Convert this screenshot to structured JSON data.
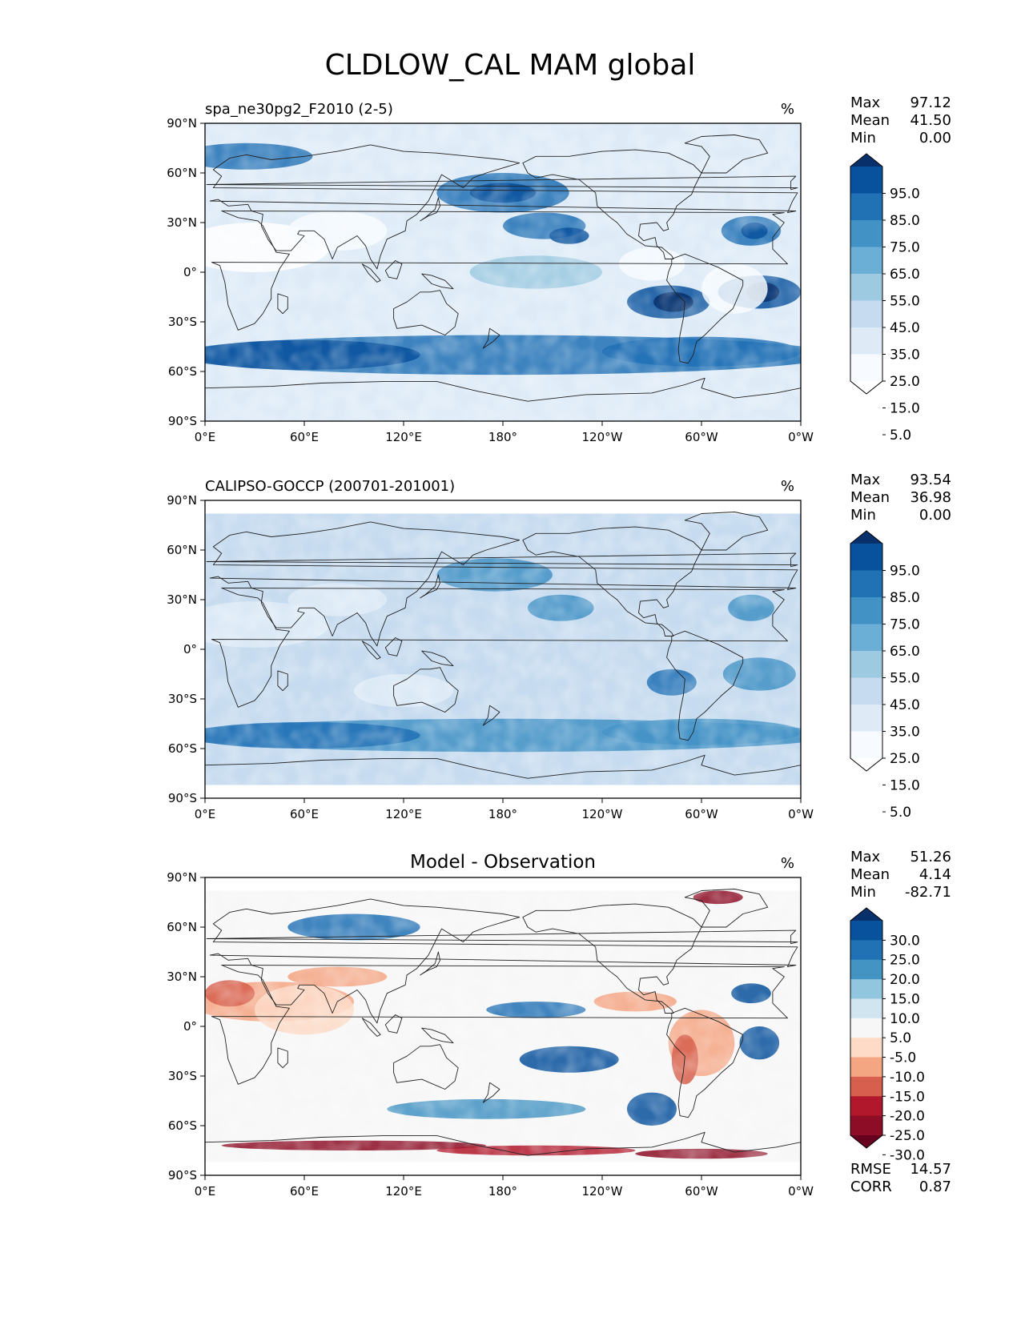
{
  "figure": {
    "title": "CLDLOW_CAL MAM global"
  },
  "axes": {
    "xticks": [
      "0°E",
      "60°E",
      "120°E",
      "180°",
      "120°W",
      "60°W",
      "0°W"
    ],
    "yticks": [
      "90°N",
      "60°N",
      "30°N",
      "0°",
      "30°S",
      "60°S",
      "90°S"
    ]
  },
  "chart_data": [
    {
      "type": "heatmap",
      "title": "spa_ne30pg2_F2010 (2-5)",
      "units": "%",
      "projection": "plate carree, global",
      "xlim": [
        0,
        360
      ],
      "ylim": [
        -90,
        90
      ],
      "stats": [
        {
          "label": "Max",
          "value": "97.12"
        },
        {
          "label": "Mean",
          "value": "41.50"
        },
        {
          "label": "Min",
          "value": "0.00"
        }
      ],
      "colorbar": {
        "labels": [
          "95.0",
          "85.0",
          "75.0",
          "65.0",
          "55.0",
          "45.0",
          "35.0",
          "25.0",
          "15.0",
          "5.0"
        ],
        "colors": [
          "#08306b",
          "#08519c",
          "#2171b5",
          "#4292c6",
          "#6baed6",
          "#9ecae1",
          "#c6dbef",
          "#deebf7",
          "#f7fbff",
          "#ffffff"
        ],
        "extend": "both"
      }
    },
    {
      "type": "heatmap",
      "title": "CALIPSO-GOCCP (200701-201001)",
      "units": "%",
      "projection": "plate carree, global",
      "xlim": [
        0,
        360
      ],
      "ylim": [
        -90,
        90
      ],
      "stats": [
        {
          "label": "Max",
          "value": "93.54"
        },
        {
          "label": "Mean",
          "value": "36.98"
        },
        {
          "label": "Min",
          "value": "0.00"
        }
      ],
      "colorbar": {
        "labels": [
          "95.0",
          "85.0",
          "75.0",
          "65.0",
          "55.0",
          "45.0",
          "35.0",
          "25.0",
          "15.0",
          "5.0"
        ],
        "colors": [
          "#08306b",
          "#08519c",
          "#2171b5",
          "#4292c6",
          "#6baed6",
          "#9ecae1",
          "#c6dbef",
          "#deebf7",
          "#f7fbff",
          "#ffffff"
        ],
        "extend": "both"
      }
    },
    {
      "type": "heatmap",
      "title": "Model - Observation",
      "units": "%",
      "projection": "plate carree, global",
      "xlim": [
        0,
        360
      ],
      "ylim": [
        -90,
        90
      ],
      "stats": [
        {
          "label": "Max",
          "value": "51.26"
        },
        {
          "label": "Mean",
          "value": "4.14"
        },
        {
          "label": "Min",
          "value": "-82.71"
        }
      ],
      "colorbar": {
        "labels": [
          "30.0",
          "25.0",
          "20.0",
          "15.0",
          "10.0",
          "5.0",
          "-5.0",
          "-10.0",
          "-15.0",
          "-20.0",
          "-25.0",
          "-30.0"
        ],
        "colors": [
          "#08306b",
          "#08519c",
          "#2171b5",
          "#4393c3",
          "#92c5de",
          "#d1e5f0",
          "#f7f7f7",
          "#fddbc7",
          "#f4a582",
          "#d6604d",
          "#b2182b",
          "#8c0d25",
          "#67001f"
        ],
        "extend": "both"
      },
      "metrics": [
        {
          "label": "RMSE",
          "value": "14.57"
        },
        {
          "label": "CORR",
          "value": "0.87"
        }
      ]
    }
  ]
}
